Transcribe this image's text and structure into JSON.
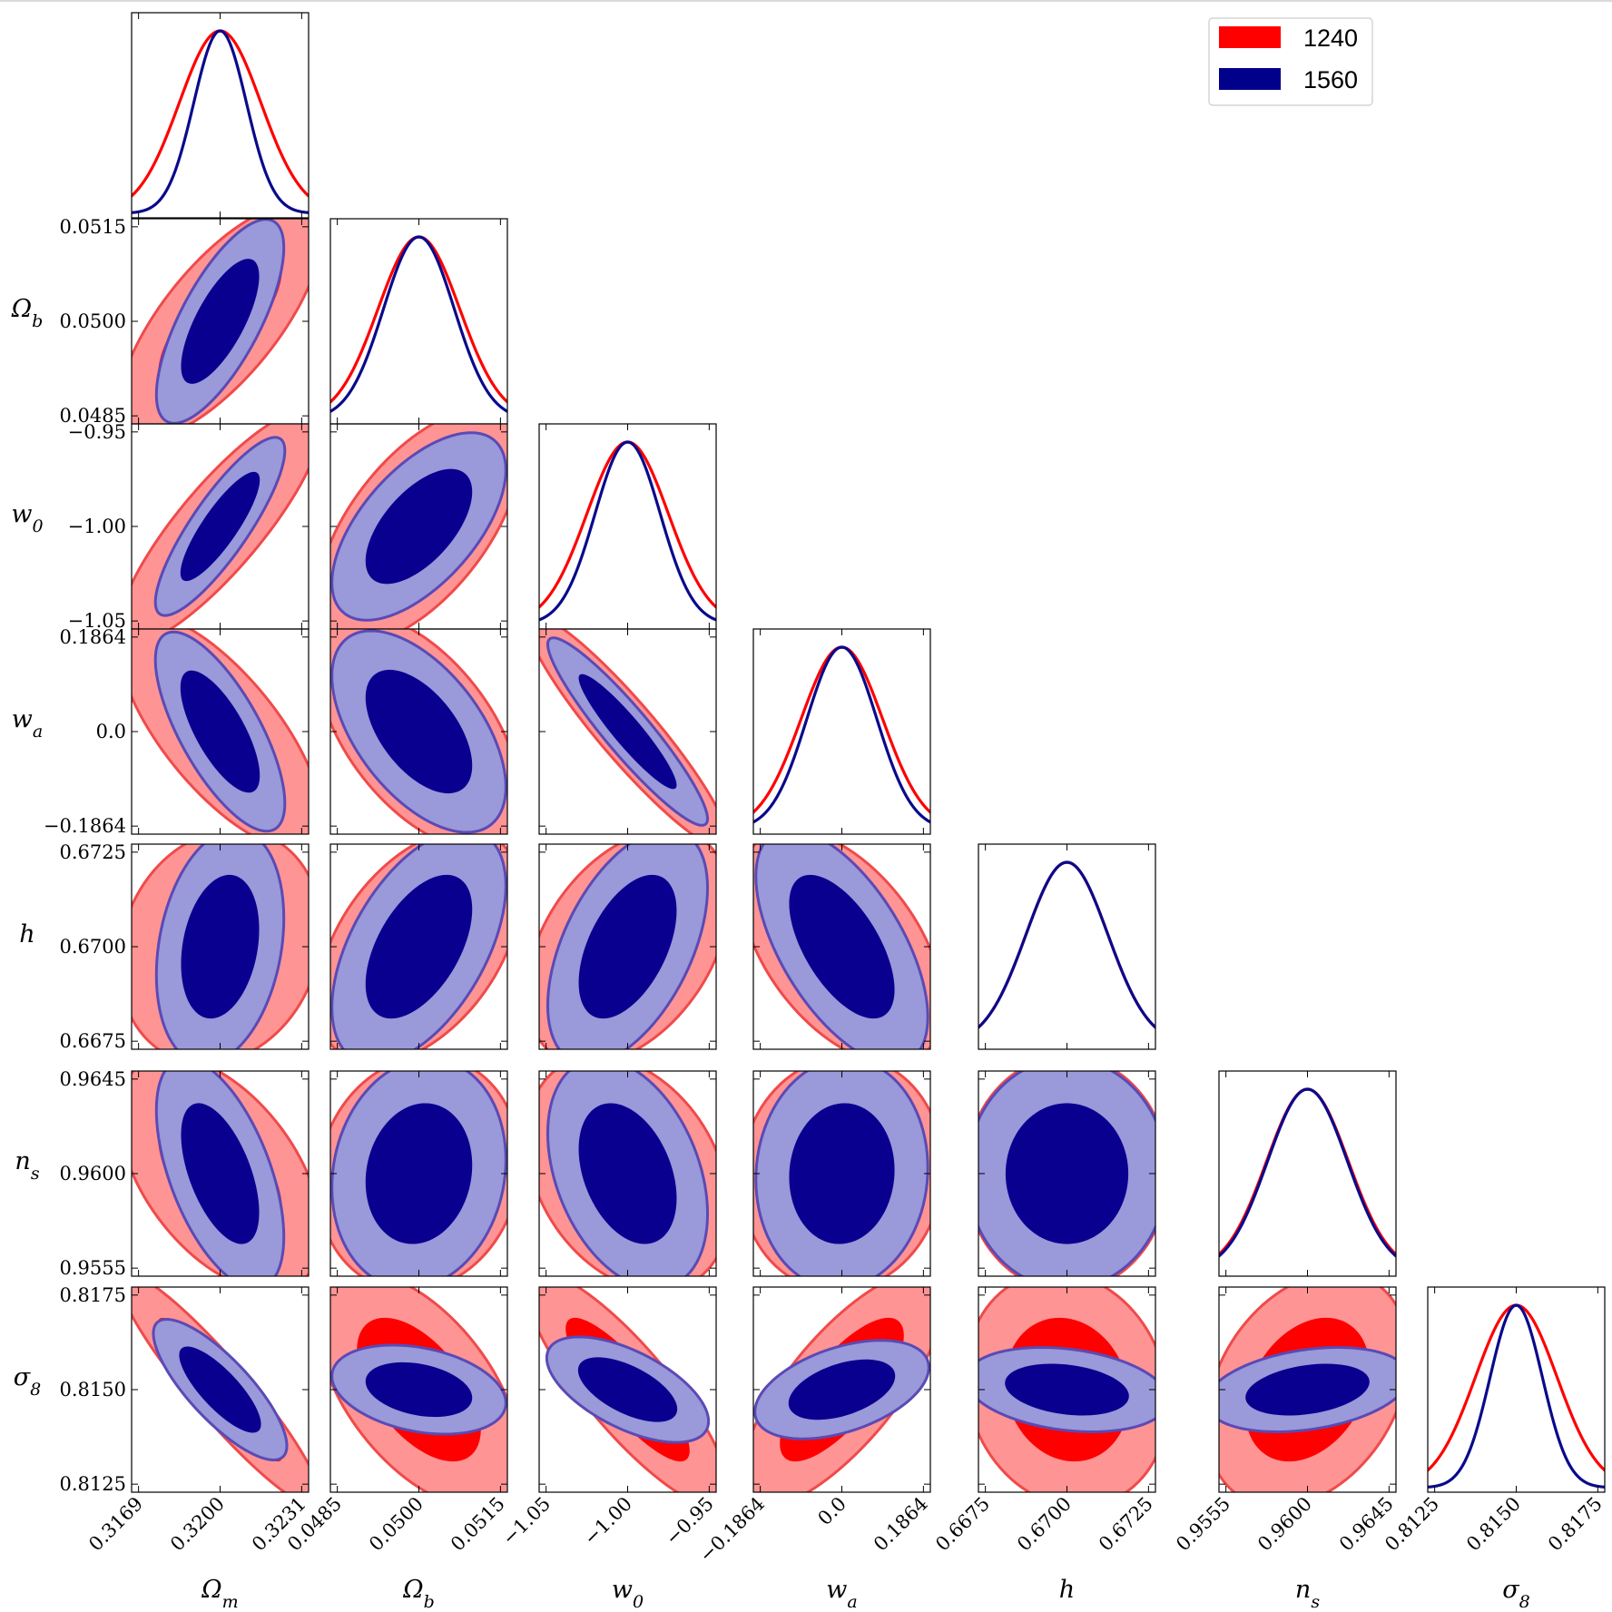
{
  "chart_data": {
    "type": "triangle-corner-plot",
    "description_free": true,
    "parameters": [
      {
        "key": "Om",
        "label": "Ωm",
        "base": "Ω",
        "sub": "m",
        "center": 0.32,
        "sigma": 0.00155,
        "sigma_blue": 0.001,
        "ticks": [
          "0.3169",
          "0.3200",
          "0.3231"
        ],
        "tick_values": [
          0.3169,
          0.32,
          0.3231
        ]
      },
      {
        "key": "Ob",
        "label": "Ωb",
        "base": "Ω",
        "sub": "b",
        "center": 0.05,
        "sigma": 0.00075,
        "sigma_blue": 0.00065,
        "ticks": [
          "0.0485",
          "0.0500",
          "0.0515"
        ],
        "tick_values": [
          0.0485,
          0.05,
          0.0515
        ]
      },
      {
        "key": "w0",
        "label": "w0",
        "base": "w",
        "sub": "0",
        "center": -1.0,
        "sigma": 0.025,
        "sigma_blue": 0.02,
        "ticks": [
          "−1.05",
          "−1.00",
          "−0.95"
        ],
        "tick_values": [
          -1.05,
          -1.0,
          -0.95
        ]
      },
      {
        "key": "wa",
        "label": "wa",
        "base": "w",
        "sub": "a",
        "center": 0.0,
        "sigma": 0.0932,
        "sigma_blue": 0.08,
        "ticks": [
          "−0.1864",
          "0.0",
          "0.1864"
        ],
        "tick_values": [
          -0.1864,
          0.0,
          0.1864
        ]
      },
      {
        "key": "h",
        "label": "h",
        "base": "h",
        "sub": "",
        "center": 0.67,
        "sigma": 0.00125,
        "sigma_blue": 0.00125,
        "ticks": [
          "0.6675",
          "0.6700",
          "0.6725"
        ],
        "tick_values": [
          0.6675,
          0.67,
          0.6725
        ]
      },
      {
        "key": "ns",
        "label": "ns",
        "base": "n",
        "sub": "s",
        "center": 0.96,
        "sigma": 0.00225,
        "sigma_blue": 0.0022,
        "ticks": [
          "0.9555",
          "0.9600",
          "0.9645"
        ],
        "tick_values": [
          0.9555,
          0.96,
          0.9645
        ]
      },
      {
        "key": "s8",
        "label": "σ8",
        "base": "σ",
        "sub": "8",
        "center": 0.815,
        "sigma": 0.00125,
        "sigma_blue": 0.0008,
        "ticks": [
          "0.8125",
          "0.8150",
          "0.8175"
        ],
        "tick_values": [
          0.8125,
          0.815,
          0.8175
        ]
      }
    ],
    "legend": {
      "position": "top-right",
      "entries": [
        {
          "name": "1240",
          "color": "#ff0000"
        },
        {
          "name": "1560",
          "color": "#00008b"
        }
      ]
    },
    "series": [
      {
        "name": "1240",
        "line_color": "#ff0000",
        "fill_outer": "#ff9494",
        "fill_inner": "#ff0000",
        "edge": "#f04a4a"
      },
      {
        "name": "1560",
        "line_color": "#0a0a8c",
        "fill_outer": "#9a99d9",
        "fill_inner": "#0a0090",
        "edge": "#5a4ab5"
      }
    ],
    "contours_2d": {
      "Ob|Om": {
        "red": {
          "rho": 0.72,
          "sx": 1.0,
          "sy": 1.0
        },
        "blue": {
          "rho": 0.72,
          "sx": 0.63,
          "sy": 0.87
        }
      },
      "w0|Om": {
        "red": {
          "rho": 0.85,
          "sx": 1.0,
          "sy": 1.0
        },
        "blue": {
          "rho": 0.85,
          "sx": 0.64,
          "sy": 0.76
        }
      },
      "w0|Ob": {
        "red": {
          "rho": 0.6,
          "sx": 1.0,
          "sy": 1.0
        },
        "blue": {
          "rho": 0.6,
          "sx": 0.86,
          "sy": 0.8
        }
      },
      "wa|Om": {
        "red": {
          "rho": -0.72,
          "sx": 1.0,
          "sy": 1.0
        },
        "blue": {
          "rho": -0.72,
          "sx": 0.64,
          "sy": 0.85
        }
      },
      "wa|Ob": {
        "red": {
          "rho": -0.55,
          "sx": 1.0,
          "sy": 1.0
        },
        "blue": {
          "rho": -0.55,
          "sx": 0.86,
          "sy": 0.86
        }
      },
      "wa|w0": {
        "red": {
          "rho": -0.93,
          "sx": 1.0,
          "sy": 1.0
        },
        "blue": {
          "rho": -0.93,
          "sx": 0.79,
          "sy": 0.8
        }
      },
      "h|Om": {
        "red": {
          "rho": 0.15,
          "sx": 1.0,
          "sy": 1.0
        },
        "blue": {
          "rho": 0.24,
          "sx": 0.63,
          "sy": 1.0
        }
      },
      "h|Ob": {
        "red": {
          "rho": 0.45,
          "sx": 1.0,
          "sy": 1.0
        },
        "blue": {
          "rho": 0.52,
          "sx": 0.86,
          "sy": 1.0
        }
      },
      "h|w0": {
        "red": {
          "rho": 0.4,
          "sx": 1.0,
          "sy": 1.0
        },
        "blue": {
          "rho": 0.5,
          "sx": 0.79,
          "sy": 1.0
        }
      },
      "h|wa": {
        "red": {
          "rho": -0.5,
          "sx": 1.0,
          "sy": 1.0
        },
        "blue": {
          "rho": -0.6,
          "sx": 0.85,
          "sy": 1.0
        }
      },
      "ns|Om": {
        "red": {
          "rho": -0.5,
          "sx": 1.0,
          "sy": 1.0
        },
        "blue": {
          "rho": -0.55,
          "sx": 0.63,
          "sy": 0.98
        }
      },
      "ns|Ob": {
        "red": {
          "rho": 0.1,
          "sx": 1.0,
          "sy": 1.0
        },
        "blue": {
          "rho": 0.12,
          "sx": 0.86,
          "sy": 0.98
        }
      },
      "ns|w0": {
        "red": {
          "rho": -0.3,
          "sx": 1.0,
          "sy": 1.0
        },
        "blue": {
          "rho": -0.35,
          "sx": 0.79,
          "sy": 0.98
        }
      },
      "ns|wa": {
        "red": {
          "rho": 0.05,
          "sx": 1.0,
          "sy": 1.0
        },
        "blue": {
          "rho": 0.05,
          "sx": 0.85,
          "sy": 0.98
        }
      },
      "ns|h": {
        "red": {
          "rho": 0.0,
          "sx": 1.0,
          "sy": 1.0
        },
        "blue": {
          "rho": 0.0,
          "sx": 0.99,
          "sy": 0.98
        }
      },
      "s8|Om": {
        "red": {
          "rho": -0.93,
          "sx": 1.0,
          "sy": 1.0
        },
        "blue": {
          "rho": -0.8,
          "sx": 0.66,
          "sy": 0.6
        }
      },
      "s8|Ob": {
        "red": {
          "rho": -0.55,
          "sx": 1.0,
          "sy": 1.0
        },
        "blue": {
          "rho": -0.3,
          "sx": 0.86,
          "sy": 0.38
        }
      },
      "s8|w0": {
        "red": {
          "rho": -0.85,
          "sx": 1.0,
          "sy": 1.0
        },
        "blue": {
          "rho": -0.6,
          "sx": 0.8,
          "sy": 0.45
        }
      },
      "s8|wa": {
        "red": {
          "rho": 0.75,
          "sx": 1.0,
          "sy": 1.0
        },
        "blue": {
          "rho": 0.45,
          "sx": 0.86,
          "sy": 0.42
        }
      },
      "s8|h": {
        "red": {
          "rho": -0.12,
          "sx": 1.0,
          "sy": 1.0
        },
        "blue": {
          "rho": -0.25,
          "sx": 1.0,
          "sy": 0.36
        }
      },
      "s8|ns": {
        "red": {
          "rho": 0.3,
          "sx": 1.0,
          "sy": 1.0
        },
        "blue": {
          "rho": 0.3,
          "sx": 1.0,
          "sy": 0.36
        }
      }
    },
    "grid": false
  }
}
